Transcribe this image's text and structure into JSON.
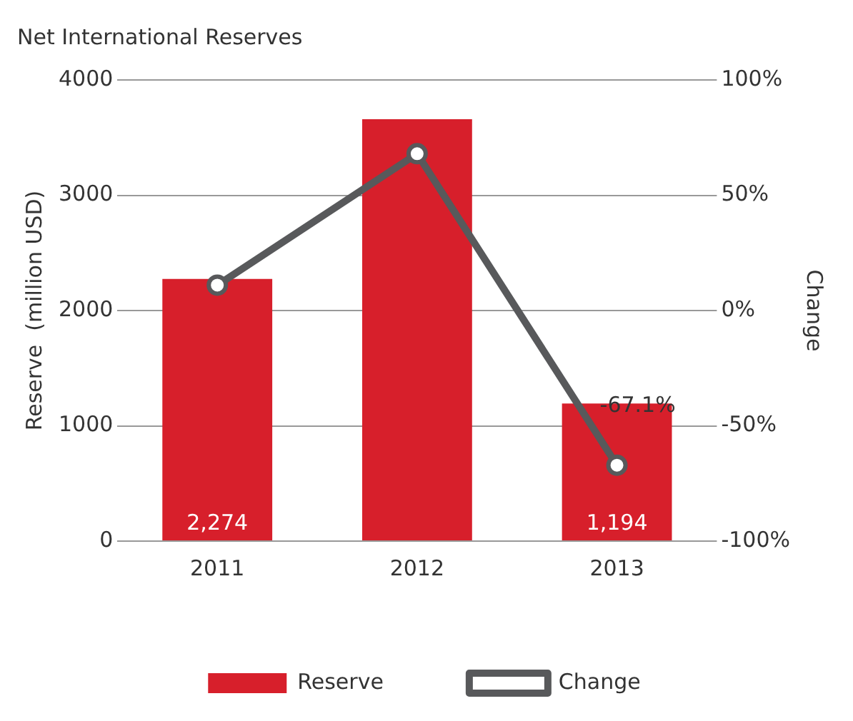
{
  "chart_data": {
    "type": "bar",
    "title": "Net International Reserves",
    "ylabel": "Reserve  (million USD)",
    "y2label": "Change",
    "categories": [
      "2011",
      "2012",
      "2013"
    ],
    "series": [
      {
        "name": "Reserve",
        "type": "bar",
        "color": "#d71f2b",
        "values": [
          2274,
          3660,
          1194
        ],
        "value_labels": [
          "2,274",
          null,
          "1,194"
        ]
      },
      {
        "name": "Change",
        "type": "line",
        "axis": "y2",
        "color": "#58595b",
        "values": [
          11,
          68,
          -67.1
        ],
        "value_labels": [
          null,
          null,
          "-67.1%"
        ]
      }
    ],
    "ylim": [
      0,
      4000
    ],
    "yticks": [
      0,
      1000,
      2000,
      3000,
      4000
    ],
    "y2lim": [
      -100,
      100
    ],
    "y2ticks": [
      {
        "value": -100,
        "label": "-100%"
      },
      {
        "value": -50,
        "label": "-50%"
      },
      {
        "value": 0,
        "label": "0%"
      },
      {
        "value": 50,
        "label": "50%"
      },
      {
        "value": 100,
        "label": "100%"
      }
    ],
    "grid": "y",
    "legend": "bottom",
    "marker": "circle",
    "line_style": "solid"
  }
}
